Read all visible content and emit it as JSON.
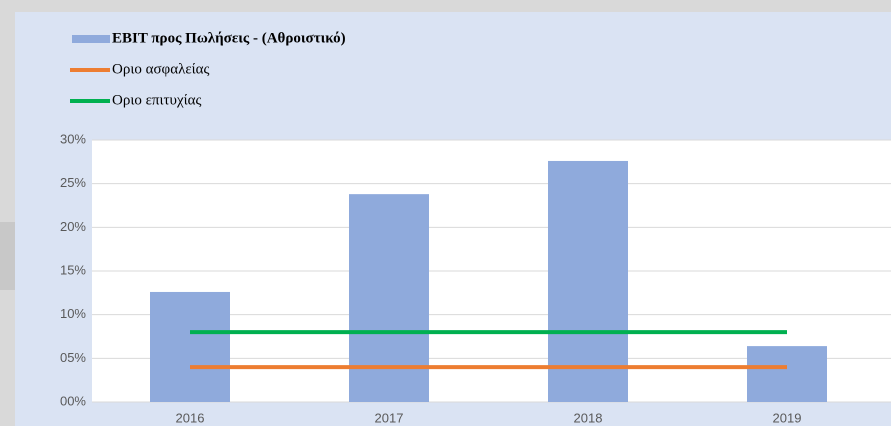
{
  "chart_data": {
    "type": "bar",
    "categories": [
      "2016",
      "2017",
      "2018",
      "2019"
    ],
    "series": [
      {
        "name": "EBIT προς Πωλήσεις - (Αθροιστικό)",
        "type": "bar",
        "color": "#8faadc",
        "values": [
          12.6,
          23.8,
          27.6,
          6.4
        ]
      },
      {
        "name": "Οριο ασφαλείας",
        "type": "line",
        "color": "#ed7d31",
        "values": [
          4,
          4,
          4,
          4
        ]
      },
      {
        "name": "Οριο επιτυχίας",
        "type": "line",
        "color": "#00b050",
        "values": [
          8,
          8,
          8,
          8
        ]
      }
    ],
    "ylim": [
      0,
      30
    ],
    "yticks": [
      {
        "value": 0,
        "label": "00%"
      },
      {
        "value": 5,
        "label": "05%"
      },
      {
        "value": 10,
        "label": "10%"
      },
      {
        "value": 15,
        "label": "15%"
      },
      {
        "value": 20,
        "label": "20%"
      },
      {
        "value": 25,
        "label": "25%"
      },
      {
        "value": 30,
        "label": "30%"
      }
    ],
    "grid": true
  }
}
